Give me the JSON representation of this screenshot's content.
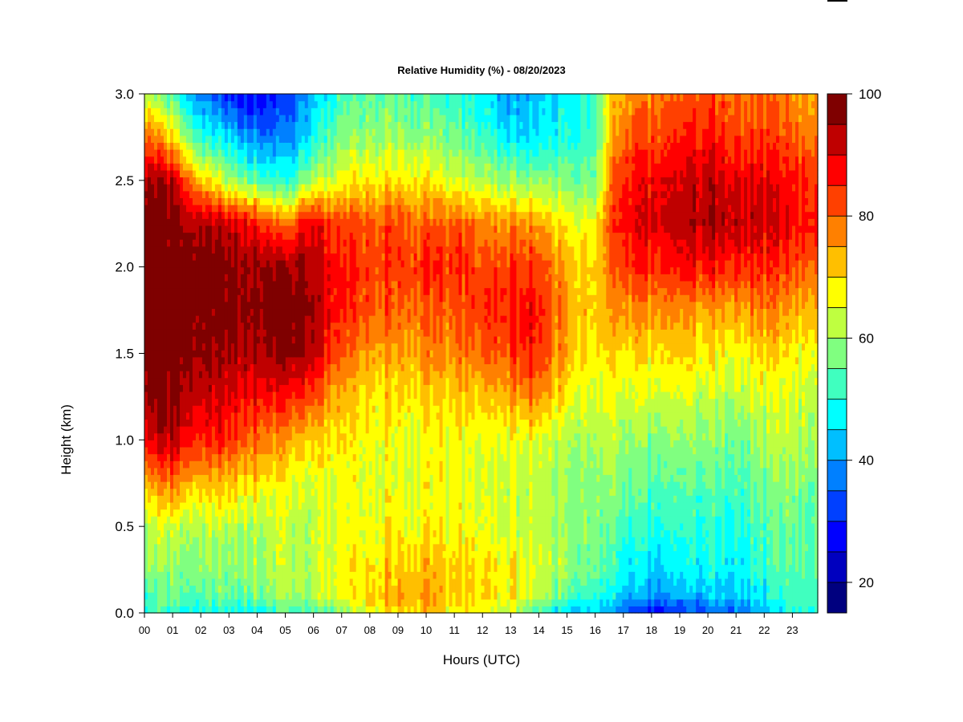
{
  "chart_data": {
    "type": "heatmap",
    "title": "Relative Humidity (%) - 08/20/2023",
    "xlabel": "Hours (UTC)",
    "ylabel": "Height (km)",
    "x_ticks": [
      "00",
      "01",
      "02",
      "03",
      "04",
      "05",
      "06",
      "07",
      "08",
      "09",
      "10",
      "11",
      "12",
      "13",
      "14",
      "15",
      "16",
      "17",
      "18",
      "19",
      "20",
      "21",
      "22",
      "23"
    ],
    "y_ticks": [
      "0.0",
      "0.5",
      "1.0",
      "1.5",
      "2.0",
      "2.5",
      "3.0"
    ],
    "xlim": [
      0,
      23.9
    ],
    "ylim": [
      0,
      3.0
    ],
    "colorbar": {
      "range": [
        15,
        100
      ],
      "ticks": [
        "100",
        "80",
        "60",
        "40",
        "20"
      ],
      "colors": [
        "#00007f",
        "#0000bf",
        "#0000ff",
        "#0040ff",
        "#0080ff",
        "#00bfff",
        "#00ffff",
        "#40ffbf",
        "#80ff80",
        "#bfff40",
        "#ffff00",
        "#ffbf00",
        "#ff8000",
        "#ff4000",
        "#ff0000",
        "#bf0000",
        "#7f0000"
      ]
    },
    "heights_km": [
      0.0,
      0.1,
      0.25,
      0.5,
      0.75,
      1.0,
      1.25,
      1.5,
      1.75,
      2.0,
      2.25,
      2.5,
      2.75,
      3.0
    ],
    "profiles": [
      {
        "hour": 0,
        "rh": [
          50,
          52,
          58,
          62,
          72,
          88,
          96,
          99,
          99,
          99,
          99,
          95,
          80,
          62
        ]
      },
      {
        "hour": 1,
        "rh": [
          50,
          55,
          58,
          63,
          78,
          92,
          97,
          99,
          99,
          99,
          98,
          92,
          70,
          52
        ]
      },
      {
        "hour": 2,
        "rh": [
          48,
          55,
          58,
          62,
          72,
          86,
          92,
          96,
          98,
          98,
          94,
          72,
          50,
          38
        ]
      },
      {
        "hour": 3,
        "rh": [
          48,
          55,
          58,
          62,
          72,
          84,
          90,
          95,
          98,
          97,
          92,
          62,
          45,
          30
        ]
      },
      {
        "hour": 4,
        "rh": [
          50,
          57,
          60,
          62,
          70,
          80,
          88,
          95,
          98,
          97,
          88,
          55,
          38,
          28
        ]
      },
      {
        "hour": 5,
        "rh": [
          52,
          60,
          62,
          62,
          66,
          74,
          86,
          96,
          98,
          94,
          76,
          48,
          36,
          30
        ]
      },
      {
        "hour": 5.7,
        "rh": [
          52,
          60,
          62,
          62,
          64,
          72,
          84,
          96,
          98,
          96,
          90,
          60,
          45,
          40
        ]
      },
      {
        "hour": 7,
        "rh": [
          56,
          66,
          66,
          66,
          66,
          68,
          72,
          80,
          84,
          85,
          82,
          66,
          58,
          52
        ]
      },
      {
        "hour": 8,
        "rh": [
          66,
          72,
          70,
          67,
          66,
          68,
          70,
          76,
          82,
          84,
          82,
          70,
          60,
          55
        ]
      },
      {
        "hour": 9,
        "rh": [
          70,
          74,
          72,
          68,
          66,
          66,
          70,
          74,
          80,
          84,
          82,
          70,
          60,
          55
        ]
      },
      {
        "hour": 10,
        "rh": [
          72,
          75,
          72,
          67,
          66,
          66,
          70,
          76,
          80,
          84,
          80,
          68,
          58,
          52
        ]
      },
      {
        "hour": 11,
        "rh": [
          67,
          70,
          70,
          67,
          66,
          66,
          70,
          76,
          80,
          84,
          80,
          64,
          55,
          50
        ]
      },
      {
        "hour": 12,
        "rh": [
          66,
          70,
          70,
          66,
          64,
          66,
          72,
          80,
          84,
          82,
          78,
          62,
          52,
          48
        ]
      },
      {
        "hour": 13,
        "rh": [
          64,
          68,
          68,
          64,
          64,
          66,
          74,
          82,
          86,
          84,
          76,
          60,
          45,
          40
        ]
      },
      {
        "hour": 13.7,
        "rh": [
          55,
          64,
          66,
          62,
          62,
          66,
          78,
          86,
          88,
          84,
          76,
          58,
          45,
          42
        ]
      },
      {
        "hour": 15,
        "rh": [
          44,
          54,
          60,
          60,
          60,
          62,
          68,
          74,
          76,
          74,
          68,
          58,
          50,
          48
        ]
      },
      {
        "hour": 16,
        "rh": [
          44,
          50,
          56,
          57,
          58,
          60,
          64,
          68,
          70,
          70,
          66,
          56,
          52,
          52
        ]
      },
      {
        "hour": 16.5,
        "rh": [
          40,
          48,
          52,
          55,
          58,
          62,
          66,
          70,
          74,
          78,
          80,
          76,
          70,
          68
        ]
      },
      {
        "hour": 17,
        "rh": [
          34,
          44,
          48,
          52,
          57,
          60,
          64,
          70,
          76,
          84,
          88,
          86,
          80,
          76
        ]
      },
      {
        "hour": 18,
        "rh": [
          28,
          38,
          44,
          50,
          54,
          58,
          64,
          70,
          76,
          84,
          90,
          88,
          82,
          78
        ]
      },
      {
        "hour": 19,
        "rh": [
          28,
          40,
          46,
          50,
          54,
          58,
          64,
          70,
          76,
          86,
          92,
          90,
          84,
          80
        ]
      },
      {
        "hour": 20,
        "rh": [
          34,
          42,
          48,
          50,
          54,
          58,
          62,
          68,
          74,
          86,
          94,
          92,
          86,
          82
        ]
      },
      {
        "hour": 21,
        "rh": [
          36,
          44,
          48,
          50,
          54,
          58,
          62,
          68,
          76,
          86,
          94,
          90,
          84,
          80
        ]
      },
      {
        "hour": 22,
        "rh": [
          40,
          46,
          50,
          52,
          56,
          60,
          64,
          70,
          76,
          84,
          90,
          88,
          82,
          78
        ]
      },
      {
        "hour": 23,
        "rh": [
          50,
          52,
          54,
          56,
          58,
          62,
          64,
          68,
          74,
          82,
          88,
          86,
          80,
          76
        ]
      },
      {
        "hour": 23.9,
        "rh": [
          52,
          54,
          56,
          56,
          58,
          62,
          64,
          68,
          74,
          82,
          88,
          86,
          80,
          76
        ]
      }
    ]
  }
}
